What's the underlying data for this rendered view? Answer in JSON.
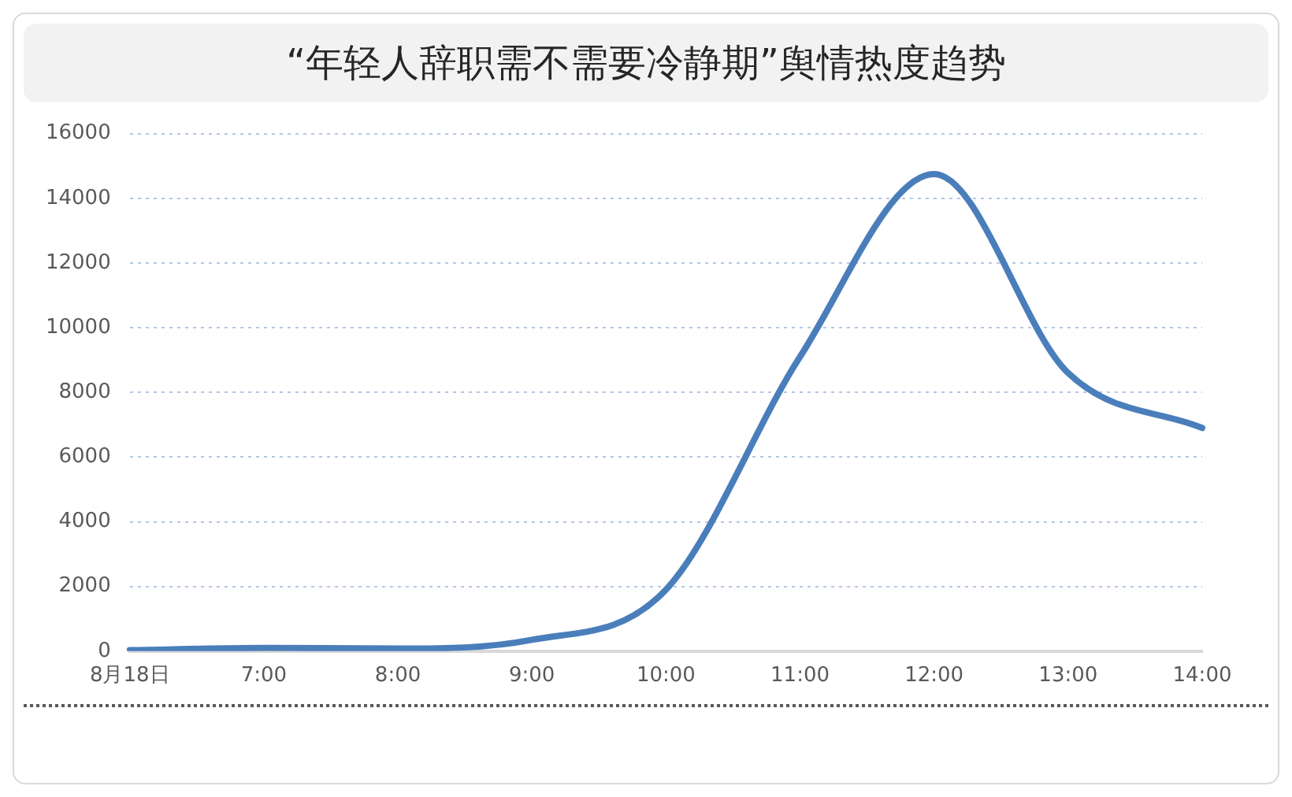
{
  "chart_data": {
    "type": "line",
    "title": "“年轻人辞职需不需要冷静期”舆情热度趋势",
    "categories": [
      "8月18日",
      "7:00",
      "8:00",
      "9:00",
      "10:00",
      "11:00",
      "12:00",
      "13:00",
      "14:00"
    ],
    "series": [
      {
        "color": "#4a7ebb",
        "values": [
          30,
          100,
          80,
          350,
          1900,
          9100,
          14750,
          8600,
          6900
        ]
      }
    ],
    "ylim": [
      0,
      16000
    ],
    "yticks": [
      0,
      2000,
      4000,
      6000,
      8000,
      10000,
      12000,
      14000,
      16000
    ],
    "grid": "y",
    "legend": false,
    "marker": "none",
    "line_style": "solid"
  }
}
